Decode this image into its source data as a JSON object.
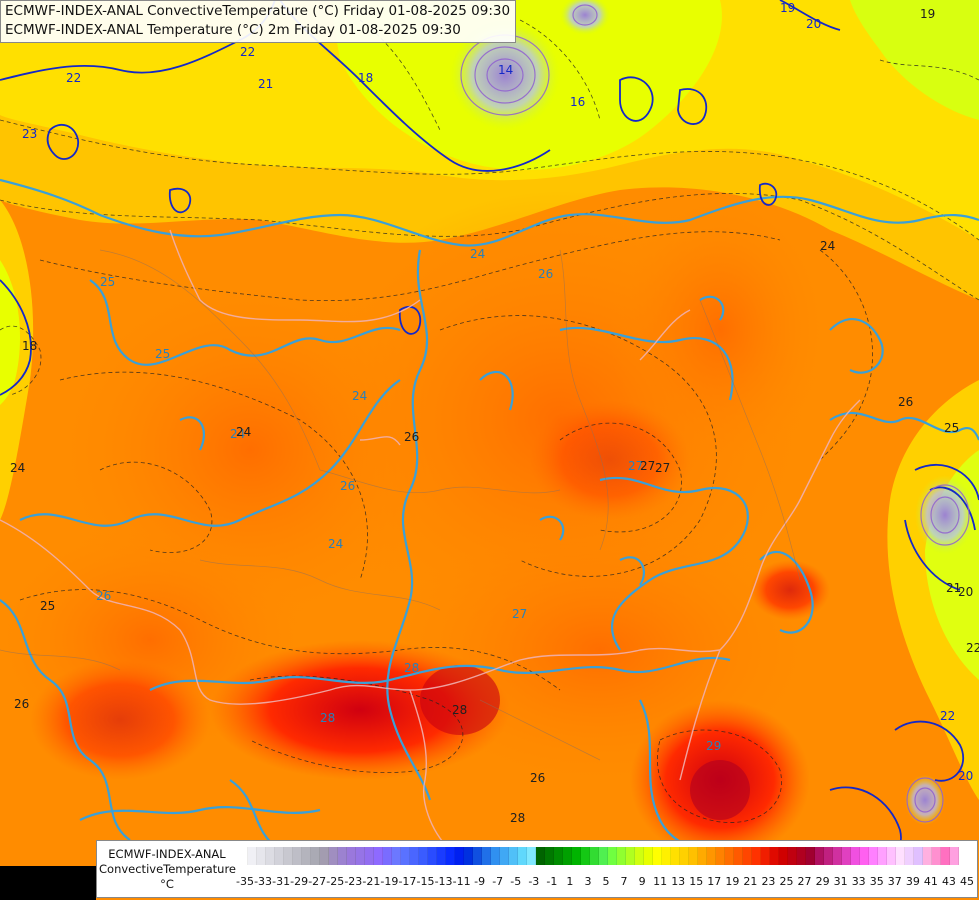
{
  "header": {
    "line1": "ECMWF-INDEX-ANAL ConvectiveTemperature (°C) Friday 01-08-2025 09:30",
    "line2": "ECMWF-INDEX-ANAL Temperature (°C) 2m Friday 01-08-2025 09:30"
  },
  "legend": {
    "line1": "ECMWF-INDEX-ANAL",
    "line2": "ConvectiveTemperature",
    "unit": "°C",
    "ticks": [
      "-35",
      "-33",
      "-31",
      "-29",
      "-27",
      "-25",
      "-23",
      "-21",
      "-19",
      "-17",
      "-15",
      "-13",
      "-11",
      "-9",
      "-7",
      "-5",
      "-3",
      "-1",
      "1",
      "3",
      "5",
      "7",
      "9",
      "11",
      "13",
      "15",
      "17",
      "19",
      "21",
      "23",
      "25",
      "27",
      "29",
      "31",
      "33",
      "35",
      "37",
      "39",
      "41",
      "43",
      "45"
    ],
    "colors": [
      "#ffffff",
      "#f0f0f5",
      "#e6e6ec",
      "#dcdce3",
      "#d2d2da",
      "#c8c8d0",
      "#bebec7",
      "#b4b4bd",
      "#aaaab4",
      "#a39cb0",
      "#a08ec0",
      "#9c82d0",
      "#9a78dc",
      "#9674e6",
      "#926ef0",
      "#8e6aff",
      "#7a6cff",
      "#6c78ff",
      "#5a72ff",
      "#4a66ff",
      "#3a5cff",
      "#2a4cff",
      "#1a3cff",
      "#0a2cff",
      "#0020f0",
      "#0030e0",
      "#1050e0",
      "#2070e8",
      "#3090f0",
      "#40a8f4",
      "#50c0f8",
      "#60d8fc",
      "#80e8ff",
      "#006400",
      "#007800",
      "#008c00",
      "#00a000",
      "#00b400",
      "#14c814",
      "#32dc32",
      "#50f050",
      "#70ff40",
      "#90ff30",
      "#b0ff20",
      "#d0ff10",
      "#e8ff00",
      "#ffff00",
      "#fff000",
      "#ffe000",
      "#ffd000",
      "#ffc000",
      "#ffaa00",
      "#ff9600",
      "#ff8200",
      "#ff6e00",
      "#ff5a00",
      "#ff4600",
      "#ff3200",
      "#f01e00",
      "#e00a00",
      "#d00000",
      "#c00010",
      "#b00020",
      "#a00030",
      "#b01060",
      "#c02080",
      "#d030a0",
      "#e040c0",
      "#f050e0",
      "#ff60f0",
      "#ff80ff",
      "#ffa0ff",
      "#ffc0ff",
      "#ffe0ff",
      "#f0d0ff",
      "#e0c0ff",
      "#ffb0e0",
      "#ff90d0",
      "#ff70c0",
      "#ffa0e0"
    ]
  },
  "contour_labels": {
    "cyan": [
      "24",
      "24",
      "24",
      "24",
      "25",
      "25",
      "26",
      "26",
      "26",
      "27",
      "27",
      "28",
      "28",
      "29"
    ],
    "navy": [
      "22",
      "22",
      "21",
      "20",
      "19",
      "18",
      "16",
      "14",
      "23",
      "22",
      "20"
    ],
    "black": [
      "25",
      "26",
      "26",
      "26",
      "27",
      "24",
      "24",
      "28",
      "28",
      "24",
      "26",
      "25",
      "22",
      "21",
      "20",
      "19",
      "18",
      "27"
    ]
  },
  "colors": {
    "warm": "#ff8c00",
    "hot": "#ff3c00",
    "cool": "#e8ff00",
    "contour_cyan": "#3aa0d8",
    "contour_navy": "#1428c8",
    "border": "#f0b0b0"
  }
}
